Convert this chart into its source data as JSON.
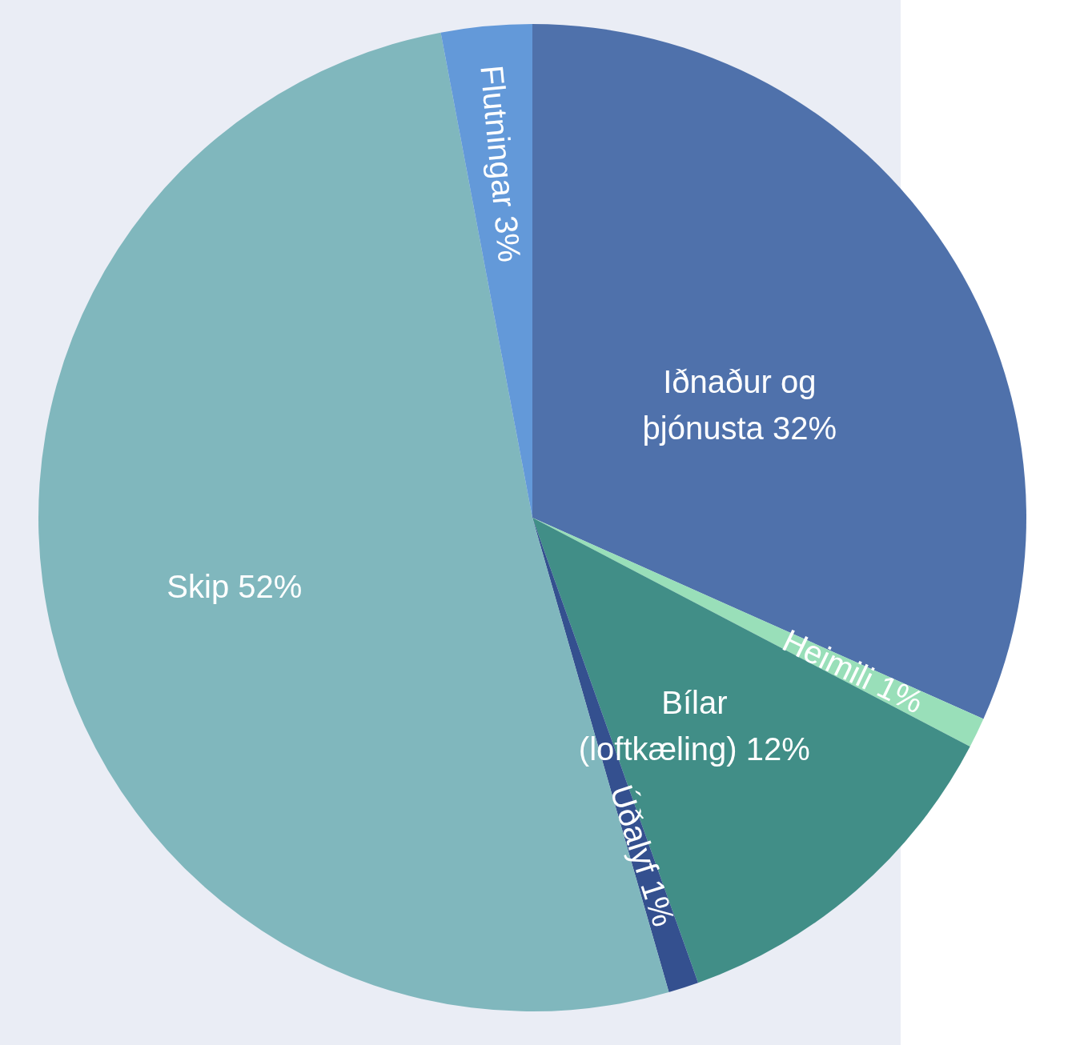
{
  "chart_data": {
    "type": "pie",
    "categories": [
      "Iðnaður og þjónusta",
      "Heimili",
      "Bílar (loftkæling)",
      "Úðalyf",
      "Skip",
      "Flutningar"
    ],
    "values": [
      32,
      1,
      12,
      1,
      52,
      3
    ],
    "value_labels": [
      "32%",
      "1%",
      "12%",
      "1%",
      "52%",
      "3%"
    ],
    "colors": [
      "#4f71ab",
      "#99dfb9",
      "#418e87",
      "#34508f",
      "#80b7bd",
      "#6399d9"
    ]
  }
}
